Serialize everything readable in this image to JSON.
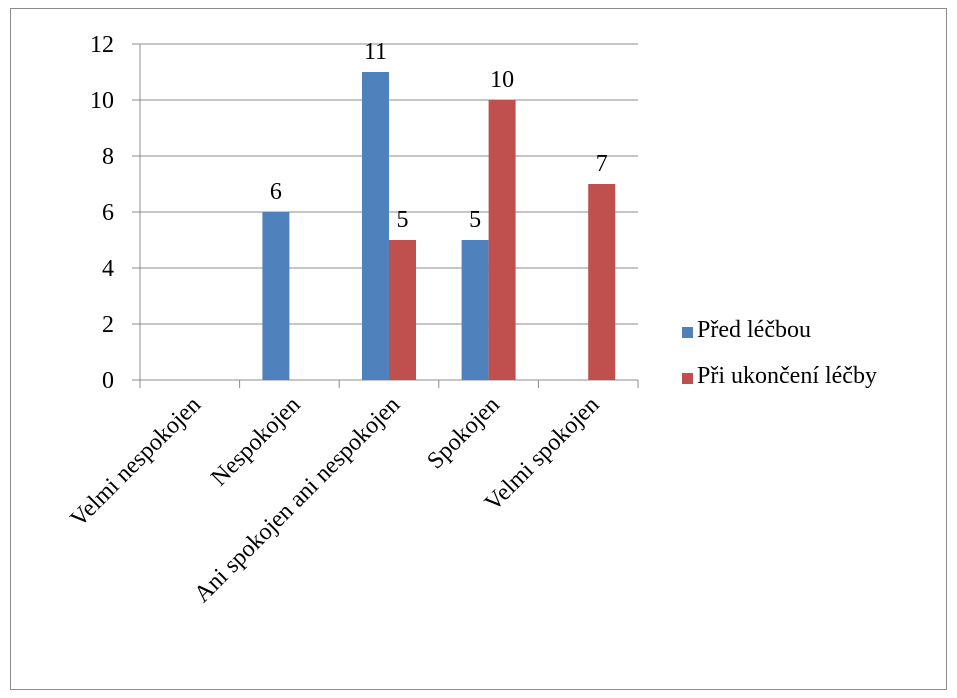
{
  "chart_data": {
    "type": "bar",
    "categories": [
      "Velmi nespokojen",
      "Nespokojen",
      "Ani spokojen ani nespokojen",
      "Spokojen",
      "Velmi spokojen"
    ],
    "series": [
      {
        "name": "Před léčbou",
        "values": [
          0,
          6,
          11,
          5,
          0
        ],
        "color": "#4f81bd"
      },
      {
        "name": "Při ukončení léčby",
        "values": [
          0,
          0,
          5,
          10,
          7
        ],
        "color": "#c0504d"
      }
    ],
    "data_labels": [
      [
        null,
        "6",
        "11",
        "5",
        null
      ],
      [
        null,
        null,
        "5",
        "10",
        "7"
      ]
    ],
    "yticks": [
      "0",
      "2",
      "4",
      "6",
      "8",
      "10",
      "12"
    ],
    "ylim": [
      0,
      12
    ],
    "grid": true,
    "legend_position": "right"
  }
}
